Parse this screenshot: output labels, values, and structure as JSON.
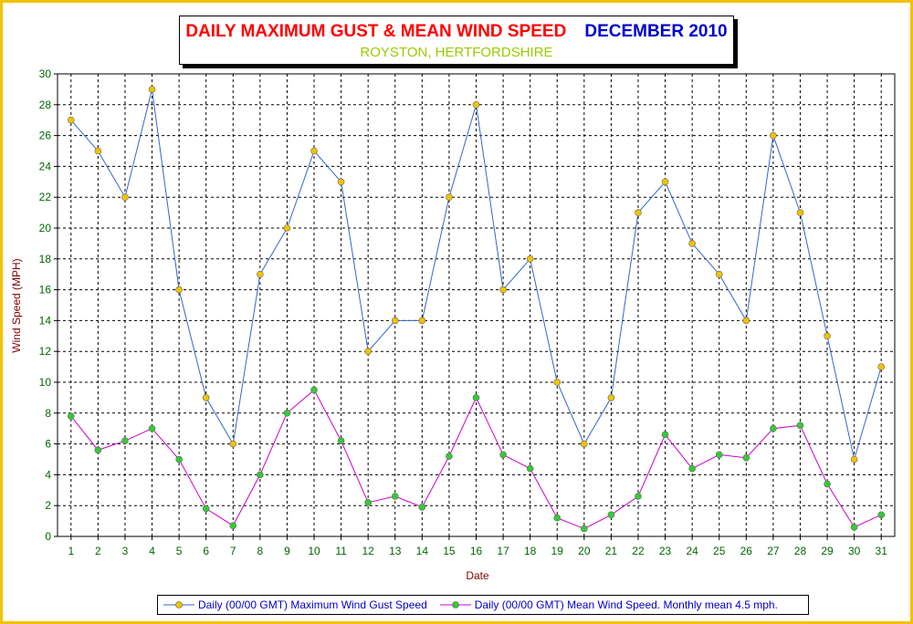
{
  "chart_data": {
    "type": "line",
    "title": "DAILY MAXIMUM GUST & MEAN WIND SPEED",
    "title_date": "DECEMBER 2010",
    "subtitle": "ROYSTON, HERTFORDSHIRE",
    "xlabel": "Date",
    "ylabel": "Wind Speed (MPH)",
    "ylim": [
      0,
      30
    ],
    "ytick_step": 2,
    "grid": true,
    "legend_position": "bottom",
    "x": [
      1,
      2,
      3,
      4,
      5,
      6,
      7,
      8,
      9,
      10,
      11,
      12,
      13,
      14,
      15,
      16,
      17,
      18,
      19,
      20,
      21,
      22,
      23,
      24,
      25,
      26,
      27,
      28,
      29,
      30,
      31
    ],
    "series": [
      {
        "name": "Daily (00/00 GMT) Maximum Wind Gust Speed",
        "line_color": "#3366cc",
        "marker_color": "#f2c200",
        "values": [
          27,
          25,
          22,
          29,
          16,
          9,
          6,
          17,
          20,
          25,
          23,
          12,
          14,
          14,
          22,
          28,
          16,
          18,
          10,
          6,
          9,
          21,
          23,
          19,
          17,
          14,
          26,
          21,
          13,
          5,
          11
        ]
      },
      {
        "name": "Daily (00/00 GMT) Mean Wind Speed. Monthly mean 4.5 mph.",
        "line_color": "#cc00cc",
        "marker_color": "#33cc33",
        "values": [
          7.8,
          5.6,
          6.2,
          7.0,
          5.0,
          1.8,
          0.7,
          4.0,
          8.0,
          9.5,
          6.2,
          2.2,
          2.6,
          1.9,
          5.2,
          9.0,
          5.3,
          4.4,
          1.2,
          0.5,
          1.4,
          2.6,
          6.6,
          4.4,
          5.3,
          5.1,
          7.0,
          7.2,
          3.4,
          0.6,
          1.4
        ]
      }
    ]
  }
}
